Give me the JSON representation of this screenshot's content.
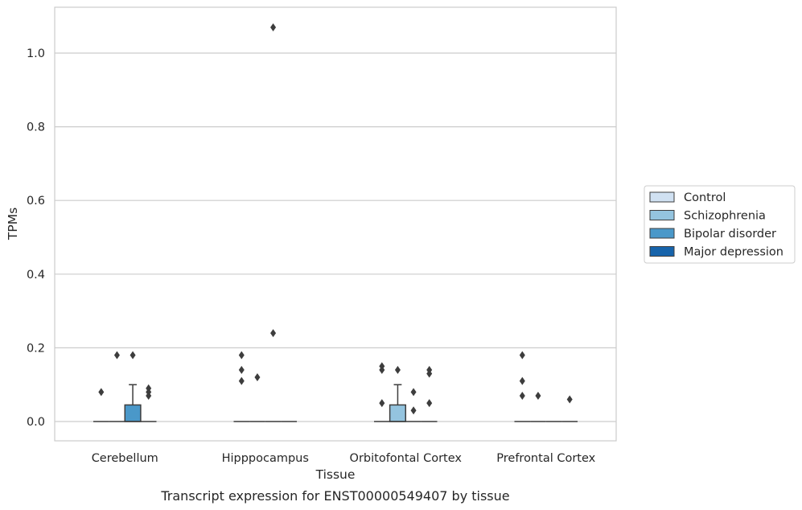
{
  "chart_data": {
    "type": "box",
    "xlabel": "Tissue",
    "ylabel": "TPMs",
    "caption": "Transcript expression for ENST00000549407 by tissue",
    "ylim": [
      -0.05,
      1.13
    ],
    "yticks": [
      0.0,
      0.2,
      0.4,
      0.6,
      0.8,
      1.0
    ],
    "ytick_labels": [
      "0.0",
      "0.2",
      "0.4",
      "0.6",
      "0.8",
      "1.0"
    ],
    "grid": "horizontal",
    "legend_position": "right",
    "categories": [
      "Cerebellum",
      "Hipppocampus",
      "Orbitofontal Cortex",
      "Prefrontal Cortex"
    ],
    "series": [
      {
        "name": "Control",
        "color": "#d0e1f2",
        "boxes": [
          {
            "q1": 0,
            "median": 0,
            "q3": 0,
            "whisker_low": 0,
            "whisker_high": 0,
            "outliers": [
              0.08
            ]
          },
          {
            "q1": 0,
            "median": 0,
            "q3": 0,
            "whisker_low": 0,
            "whisker_high": 0,
            "outliers": [
              0.18,
              0.14,
              0.11
            ]
          },
          {
            "q1": 0,
            "median": 0,
            "q3": 0,
            "whisker_low": 0,
            "whisker_high": 0,
            "outliers": [
              0.15,
              0.14,
              0.05
            ]
          },
          {
            "q1": 0,
            "median": 0,
            "q3": 0,
            "whisker_low": 0,
            "whisker_high": 0,
            "outliers": [
              0.18,
              0.11,
              0.07
            ]
          }
        ]
      },
      {
        "name": "Schizophrenia",
        "color": "#94c4df",
        "boxes": [
          {
            "q1": 0,
            "median": 0,
            "q3": 0,
            "whisker_low": 0,
            "whisker_high": 0,
            "outliers": [
              0.18
            ]
          },
          {
            "q1": 0,
            "median": 0,
            "q3": 0,
            "whisker_low": 0,
            "whisker_high": 0,
            "outliers": [
              0.12
            ]
          },
          {
            "q1": 0,
            "median": 0,
            "q3": 0.045,
            "whisker_low": 0,
            "whisker_high": 0.1,
            "outliers": [
              0.14
            ]
          },
          {
            "q1": 0,
            "median": 0,
            "q3": 0,
            "whisker_low": 0,
            "whisker_high": 0,
            "outliers": [
              0.07
            ]
          }
        ]
      },
      {
        "name": "Bipolar disorder",
        "color": "#4a98c9",
        "boxes": [
          {
            "q1": 0,
            "median": 0,
            "q3": 0.045,
            "whisker_low": 0,
            "whisker_high": 0.1,
            "outliers": [
              0.18
            ]
          },
          {
            "q1": 0,
            "median": 0,
            "q3": 0,
            "whisker_low": 0,
            "whisker_high": 0,
            "outliers": [
              1.07,
              0.24
            ]
          },
          {
            "q1": 0,
            "median": 0,
            "q3": 0,
            "whisker_low": 0,
            "whisker_high": 0,
            "outliers": [
              0.08,
              0.03
            ]
          },
          {
            "q1": 0,
            "median": 0,
            "q3": 0,
            "whisker_low": 0,
            "whisker_high": 0,
            "outliers": []
          }
        ]
      },
      {
        "name": "Major depression",
        "color": "#1764ab",
        "boxes": [
          {
            "q1": 0,
            "median": 0,
            "q3": 0,
            "whisker_low": 0,
            "whisker_high": 0,
            "outliers": [
              0.09,
              0.08,
              0.07
            ]
          },
          {
            "q1": 0,
            "median": 0,
            "q3": 0,
            "whisker_low": 0,
            "whisker_high": 0,
            "outliers": []
          },
          {
            "q1": 0,
            "median": 0,
            "q3": 0,
            "whisker_low": 0,
            "whisker_high": 0,
            "outliers": [
              0.14,
              0.13,
              0.05
            ]
          },
          {
            "q1": 0,
            "median": 0,
            "q3": 0,
            "whisker_low": 0,
            "whisker_high": 0,
            "outliers": [
              0.06
            ]
          }
        ]
      }
    ]
  }
}
